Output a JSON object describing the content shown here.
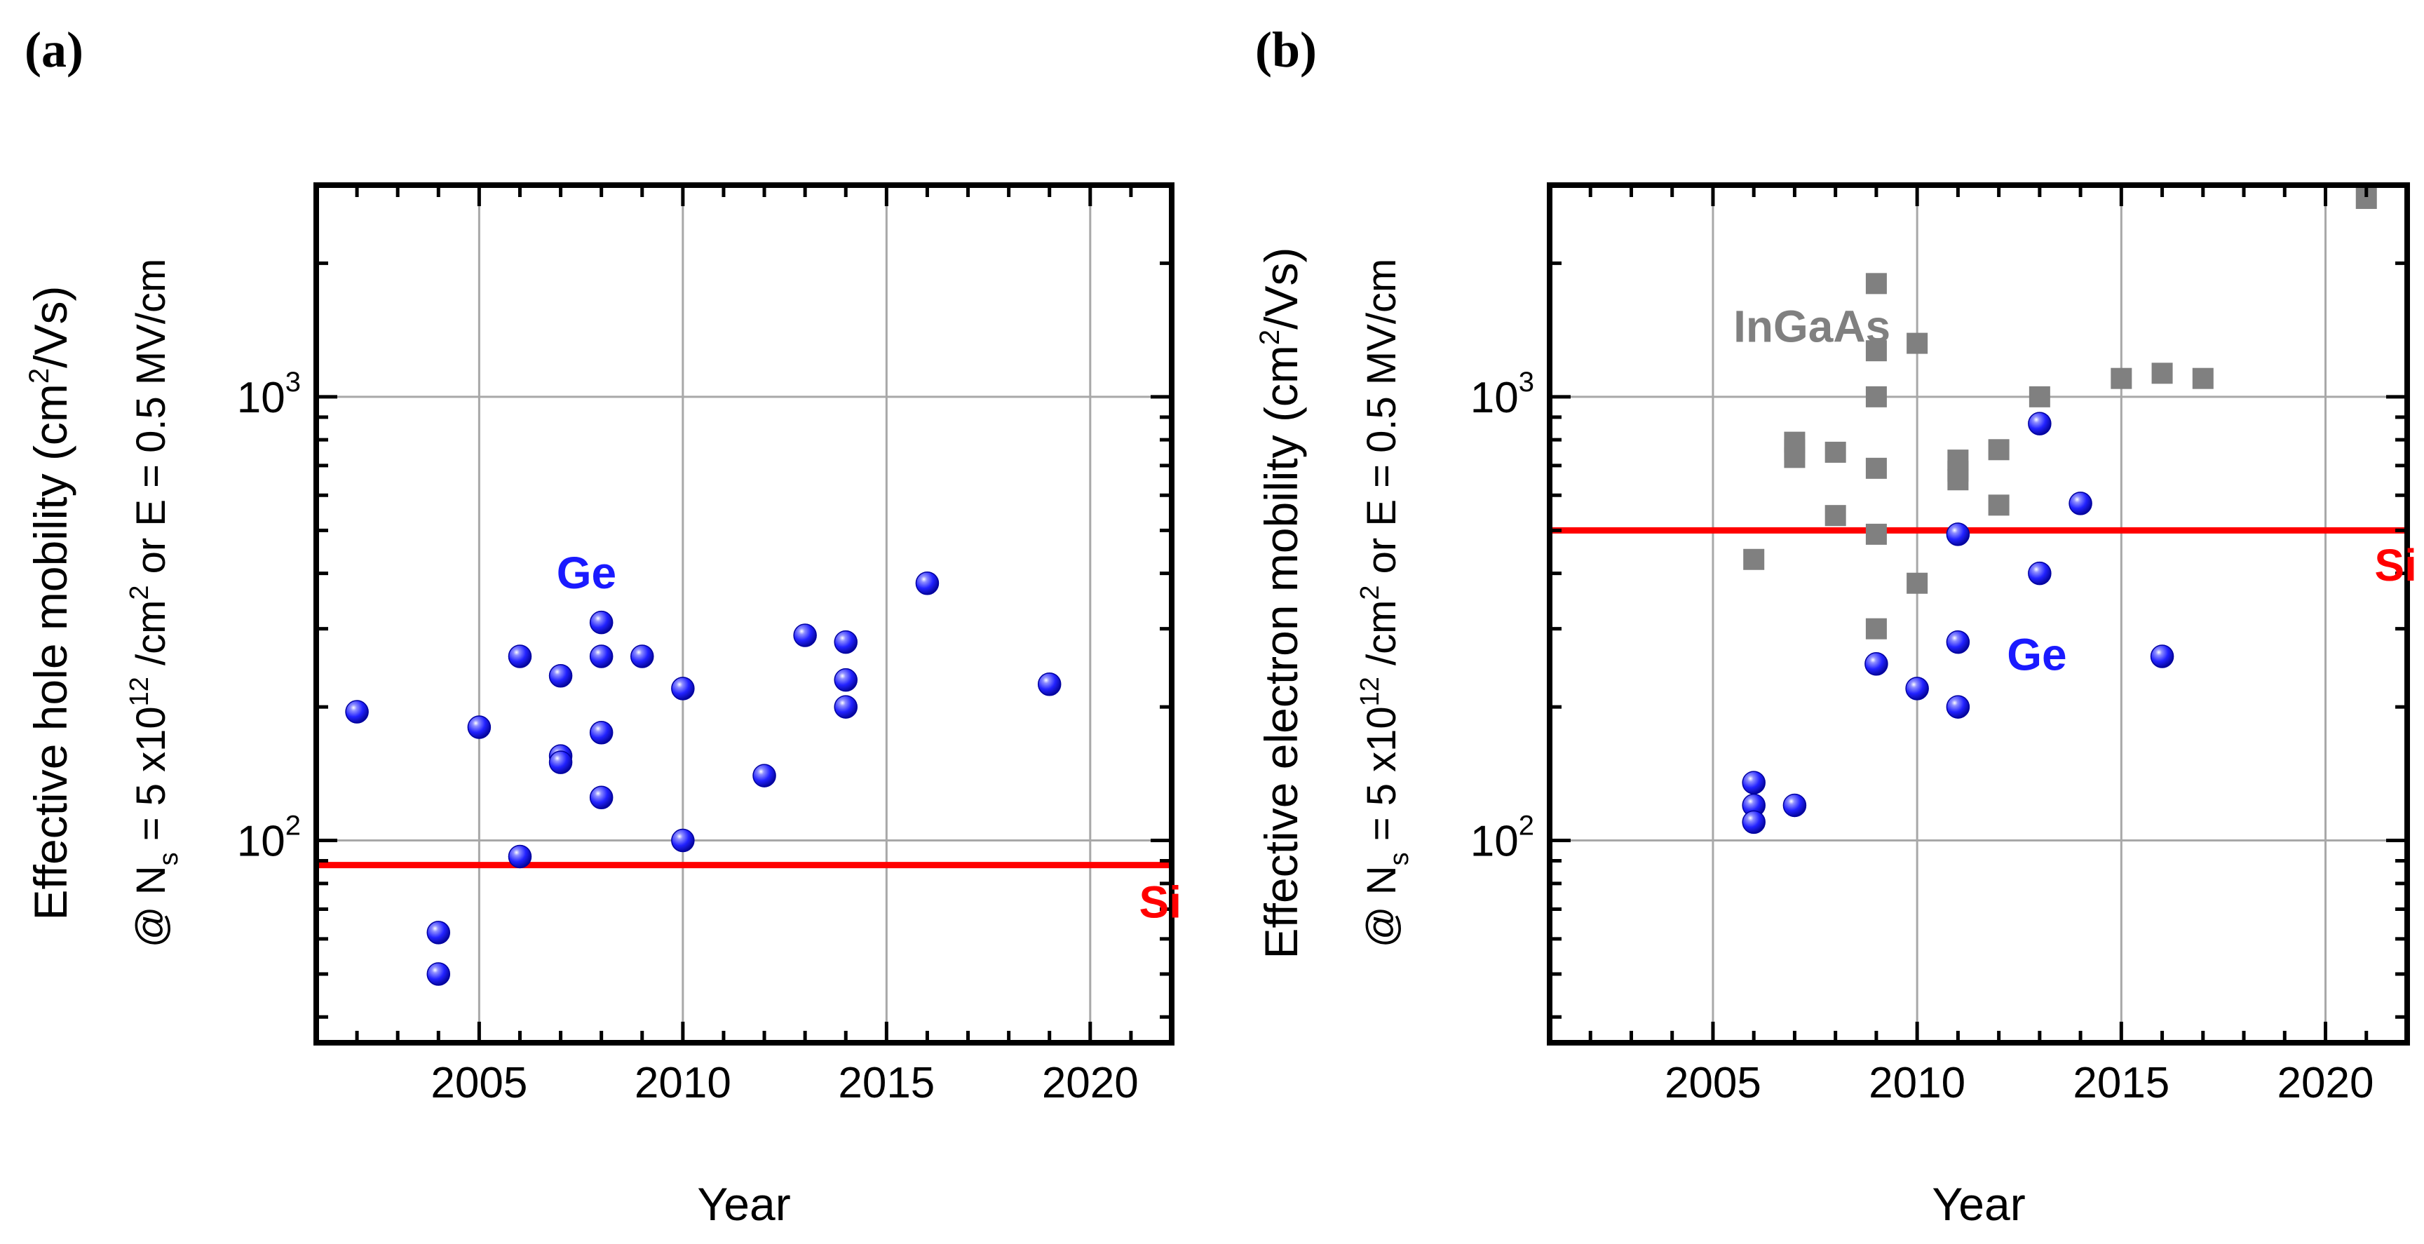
{
  "chart_data": [
    {
      "panel": "(a)",
      "type": "scatter",
      "xlabel": "Year",
      "ylabel": {
        "line1_prefix": "Effective hole mobility (cm",
        "line1_sup": "2",
        "line1_suffix": "/Vs)",
        "line2_a": "@ N",
        "line2_sub": "s",
        "line2_b": " = 5 x10",
        "line2_sup1": "12",
        "line2_c": " /cm",
        "line2_sup2": "2",
        "line2_d": " or E = 0.5 MV/cm"
      },
      "xlim": [
        2001,
        2022
      ],
      "ylim": [
        35,
        3000
      ],
      "yscale": "log",
      "grid": true,
      "xticks": [
        2005,
        2010,
        2015,
        2020
      ],
      "yticks": [
        {
          "base": "10",
          "exp": "2",
          "value": 100
        },
        {
          "base": "10",
          "exp": "3",
          "value": 1000
        }
      ],
      "series": [
        {
          "name": "Ge",
          "marker": "sphere",
          "color": "#1a1aff",
          "points": [
            [
              2002,
              195
            ],
            [
              2004,
              62
            ],
            [
              2004,
              50
            ],
            [
              2005,
              180
            ],
            [
              2006,
              260
            ],
            [
              2006,
              92
            ],
            [
              2007,
              235
            ],
            [
              2007,
              155
            ],
            [
              2007,
              150
            ],
            [
              2008,
              310
            ],
            [
              2008,
              260
            ],
            [
              2008,
              175
            ],
            [
              2008,
              125
            ],
            [
              2009,
              260
            ],
            [
              2010,
              220
            ],
            [
              2010,
              100
            ],
            [
              2012,
              140
            ],
            [
              2013,
              290
            ],
            [
              2014,
              280
            ],
            [
              2014,
              230
            ],
            [
              2014,
              200
            ],
            [
              2016,
              380
            ],
            [
              2019,
              225
            ]
          ]
        }
      ],
      "reference_lines": [
        {
          "label": "Si",
          "y": 88,
          "color": "#ff0000"
        }
      ],
      "annotations": [
        {
          "text": "Ge",
          "x": 2006.9,
          "y": 370,
          "color": "#1a1aff"
        },
        {
          "text": "Si",
          "x": 2021.2,
          "y": 67,
          "color": "#ff0000"
        }
      ]
    },
    {
      "panel": "(b)",
      "type": "scatter",
      "xlabel": "Year",
      "ylabel": {
        "line1_prefix": "Effective electron mobility (cm",
        "line1_sup": "2",
        "line1_suffix": "/Vs)",
        "line2_a": "@ N",
        "line2_sub": "s",
        "line2_b": " = 5 x10",
        "line2_sup1": "12",
        "line2_c": " /cm",
        "line2_sup2": "2",
        "line2_d": " or E = 0.5 MV/cm"
      },
      "xlim": [
        2001,
        2022
      ],
      "ylim": [
        35,
        3000
      ],
      "yscale": "log",
      "grid": true,
      "xticks": [
        2005,
        2010,
        2015,
        2020
      ],
      "yticks": [
        {
          "base": "10",
          "exp": "2",
          "value": 100
        },
        {
          "base": "10",
          "exp": "3",
          "value": 1000
        }
      ],
      "series": [
        {
          "name": "InGaAs",
          "marker": "square",
          "color": "#808080",
          "points": [
            [
              2006,
              430
            ],
            [
              2007,
              790
            ],
            [
              2007,
              760
            ],
            [
              2007,
              730
            ],
            [
              2008,
              750
            ],
            [
              2008,
              540
            ],
            [
              2009,
              1800
            ],
            [
              2009,
              1270
            ],
            [
              2009,
              1000
            ],
            [
              2009,
              690
            ],
            [
              2009,
              490
            ],
            [
              2009,
              300
            ],
            [
              2010,
              1320
            ],
            [
              2010,
              380
            ],
            [
              2011,
              720
            ],
            [
              2011,
              680
            ],
            [
              2011,
              650
            ],
            [
              2012,
              760
            ],
            [
              2012,
              570
            ],
            [
              2013,
              1000
            ],
            [
              2015,
              1100
            ],
            [
              2016,
              1130
            ],
            [
              2017,
              1100
            ],
            [
              2021,
              2800
            ]
          ]
        },
        {
          "name": "Ge",
          "marker": "sphere",
          "color": "#1a1aff",
          "points": [
            [
              2006,
              135
            ],
            [
              2006,
              120
            ],
            [
              2006,
              110
            ],
            [
              2007,
              120
            ],
            [
              2009,
              250
            ],
            [
              2010,
              220
            ],
            [
              2011,
              490
            ],
            [
              2011,
              280
            ],
            [
              2011,
              200
            ],
            [
              2013,
              870
            ],
            [
              2013,
              400
            ],
            [
              2014,
              575
            ],
            [
              2016,
              260
            ]
          ]
        }
      ],
      "reference_lines": [
        {
          "label": "Si",
          "y": 500,
          "color": "#ff0000"
        }
      ],
      "annotations": [
        {
          "text": "InGaAs",
          "x": 2005.5,
          "y": 1330,
          "color": "#808080"
        },
        {
          "text": "Ge",
          "x": 2012.2,
          "y": 242,
          "color": "#1a1aff"
        },
        {
          "text": "Si",
          "x": 2021.2,
          "y": 385,
          "color": "#ff0000"
        }
      ]
    }
  ]
}
